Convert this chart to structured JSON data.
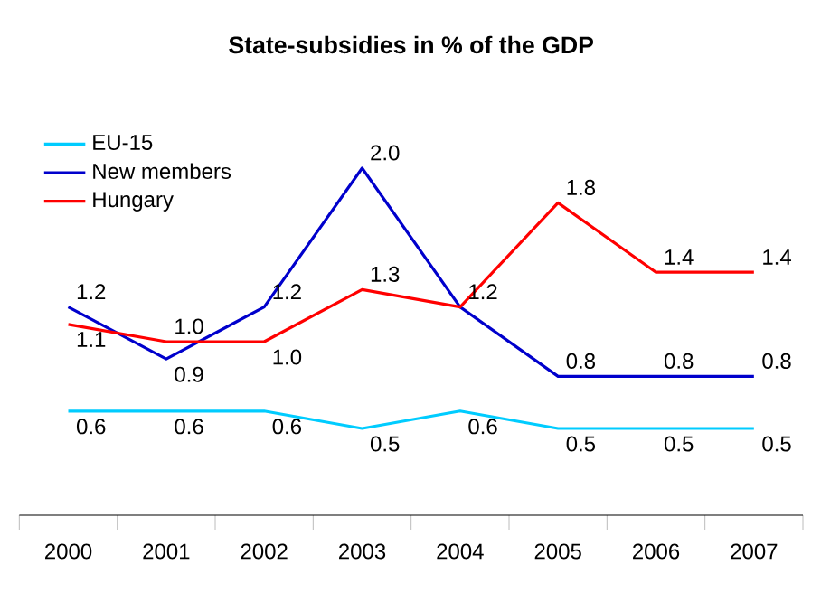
{
  "chart_data": {
    "type": "line",
    "title": "State-subsidies in % of the GDP",
    "categories": [
      "2000",
      "2001",
      "2002",
      "2003",
      "2004",
      "2005",
      "2006",
      "2007"
    ],
    "series": [
      {
        "name": "EU-15",
        "color": "#00ccff",
        "values": [
          0.6,
          0.6,
          0.6,
          0.5,
          0.6,
          0.5,
          0.5,
          0.5
        ],
        "value_labels": [
          "0.6",
          "0.6",
          "0.6",
          "0.5",
          "0.6",
          "0.5",
          "0.5",
          "0.5"
        ]
      },
      {
        "name": "New members",
        "color": "#0000cc",
        "values": [
          1.2,
          0.9,
          1.2,
          2.0,
          1.2,
          0.8,
          0.8,
          0.8
        ],
        "value_labels": [
          "1.2",
          "0.9",
          "1.2",
          "2.0",
          "1.2",
          "0.8",
          "0.8",
          "0.8"
        ]
      },
      {
        "name": "Hungary",
        "color": "#ff0000",
        "values": [
          1.1,
          1.0,
          1.0,
          1.3,
          1.2,
          1.8,
          1.4,
          1.4
        ],
        "value_labels": [
          "1.1",
          "1.0",
          "1.0",
          "1.3",
          null,
          "1.8",
          "1.4",
          "1.4"
        ]
      }
    ],
    "legend": "top left",
    "grid": false,
    "marker": "none",
    "line_style": "solid"
  }
}
